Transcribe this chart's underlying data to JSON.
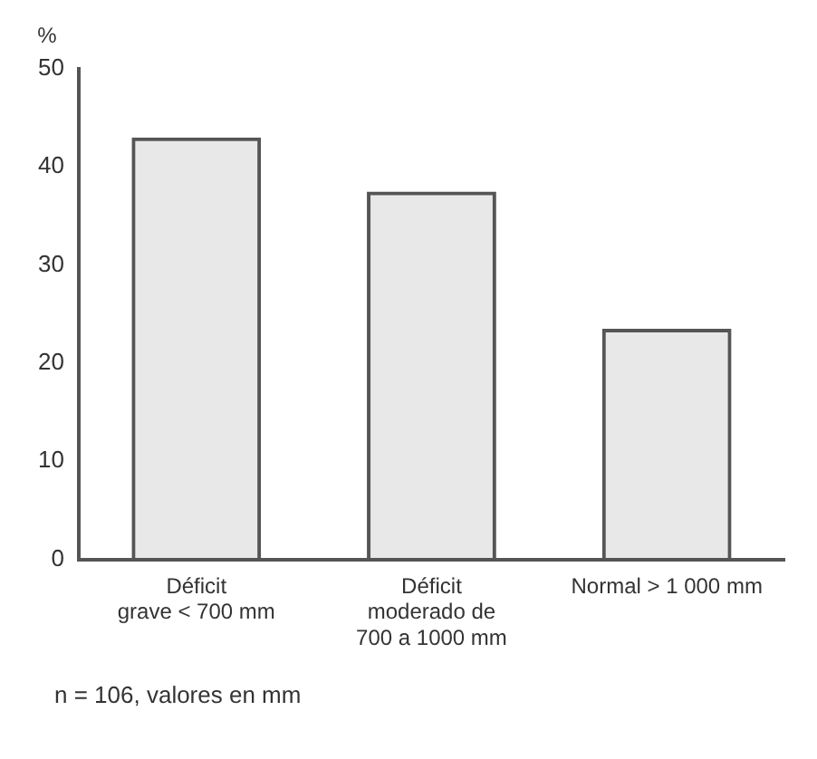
{
  "chart_data": {
    "type": "bar",
    "ylabel": "%",
    "categories": [
      "Déficit\ngrave < 700 mm",
      "Déficit\nmoderado de\n700 a 1000 mm",
      "Normal > 1 000 mm"
    ],
    "values": [
      43,
      37.5,
      23.5
    ],
    "color": "#555555",
    "ylim": [
      0,
      50
    ],
    "yticks": [
      0,
      10,
      20,
      30,
      40,
      50
    ],
    "grid": false,
    "legend": false,
    "annotations": [
      "n = 106, valores en mm"
    ]
  }
}
